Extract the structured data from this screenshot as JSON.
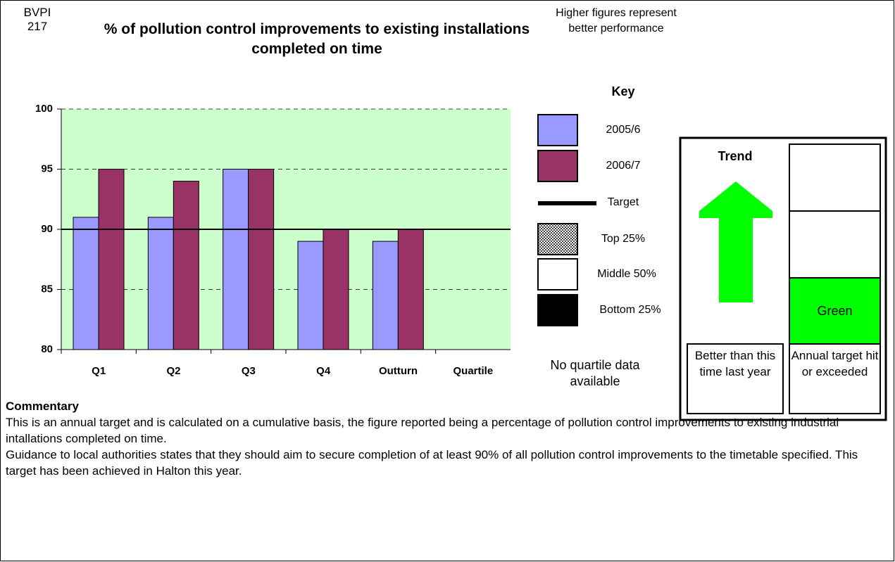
{
  "code": "BVPI 217",
  "note": "Higher figures represent better performance",
  "chart_data": {
    "type": "bar",
    "title": "% of pollution control improvements to existing installations completed on time",
    "categories": [
      "Q1",
      "Q2",
      "Q3",
      "Q4",
      "Outturn",
      "Quartile"
    ],
    "series": [
      {
        "name": "2005/6",
        "color": "#9999ff",
        "values": [
          91,
          91,
          95,
          89,
          89,
          null
        ]
      },
      {
        "name": "2006/7",
        "color": "#993366",
        "values": [
          95,
          94,
          95,
          90,
          90,
          null
        ]
      }
    ],
    "target": 90,
    "target_name": "Target",
    "ylim": [
      80,
      100
    ],
    "yticks": [
      80,
      85,
      90,
      95,
      100
    ],
    "grid": true
  },
  "key": {
    "title": "Key",
    "quartiles": [
      "Top 25%",
      "Middle 50%",
      "Bottom 25%"
    ],
    "quartile_note": "No quartile data available"
  },
  "trend": {
    "title": "Trend",
    "caption": "Better than this time last year"
  },
  "target_status": {
    "label": "Green",
    "caption": "Annual target hit or exceeded"
  },
  "commentary": {
    "heading": "Commentary",
    "paragraphs": [
      "This is an annual target and is calculated on a cumulative basis, the figure reported being a percentage of pollution control improvements to existing industrial intallations completed on time.",
      "Guidance to local authorities states that they should aim to secure completion of at least 90% of all pollution control improvements to the timetable specified. This target has been achieved in Halton this year."
    ]
  }
}
